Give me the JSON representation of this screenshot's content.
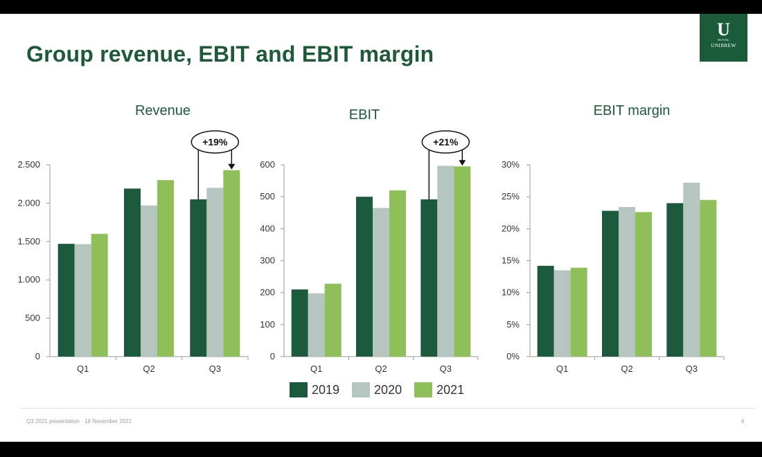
{
  "slide": {
    "title": "Group revenue, EBIT and EBIT margin",
    "footer": "Q3 2021 presentation · 18 November 2021",
    "page": "6",
    "logo": {
      "mark": "U",
      "small": "ROYAL",
      "name": "UNIBREW"
    }
  },
  "legend": [
    {
      "name": "2019",
      "color": "#1b5a3c"
    },
    {
      "name": "2020",
      "color": "#b5c6c1"
    },
    {
      "name": "2021",
      "color": "#8fbf58"
    }
  ],
  "chart_data": [
    {
      "type": "bar",
      "title": "Revenue",
      "categories": [
        "Q1",
        "Q2",
        "Q3"
      ],
      "series": [
        {
          "name": "2019",
          "values": [
            1470,
            2190,
            2050
          ]
        },
        {
          "name": "2020",
          "values": [
            1465,
            1970,
            2200
          ]
        },
        {
          "name": "2021",
          "values": [
            1600,
            2300,
            2430
          ]
        }
      ],
      "ylim": [
        0,
        2500
      ],
      "yticks": [
        0,
        500,
        1000,
        1500,
        2000,
        2500
      ],
      "ytick_labels": [
        "0",
        "500",
        "1.000",
        "1.500",
        "2.000",
        "2.500"
      ],
      "annotation": {
        "text": "+19%",
        "category": "Q3"
      }
    },
    {
      "type": "bar",
      "title": "EBIT",
      "categories": [
        "Q1",
        "Q2",
        "Q3"
      ],
      "series": [
        {
          "name": "2019",
          "values": [
            210,
            500,
            492
          ]
        },
        {
          "name": "2020",
          "values": [
            198,
            465,
            597
          ]
        },
        {
          "name": "2021",
          "values": [
            228,
            520,
            595
          ]
        }
      ],
      "ylim": [
        0,
        600
      ],
      "yticks": [
        0,
        100,
        200,
        300,
        400,
        500,
        600
      ],
      "ytick_labels": [
        "0",
        "100",
        "200",
        "300",
        "400",
        "500",
        "600"
      ],
      "annotation": {
        "text": "+21%",
        "category": "Q3"
      }
    },
    {
      "type": "bar",
      "title": "EBIT margin",
      "categories": [
        "Q1",
        "Q2",
        "Q3"
      ],
      "series": [
        {
          "name": "2019",
          "values": [
            14.2,
            22.8,
            24.0
          ]
        },
        {
          "name": "2020",
          "values": [
            13.5,
            23.4,
            27.2
          ]
        },
        {
          "name": "2021",
          "values": [
            13.9,
            22.6,
            24.5
          ]
        }
      ],
      "ylim": [
        0,
        30
      ],
      "yticks": [
        0,
        5,
        10,
        15,
        20,
        25,
        30
      ],
      "ytick_labels": [
        "0%",
        "5%",
        "10%",
        "15%",
        "20%",
        "25%",
        "30%"
      ]
    }
  ]
}
